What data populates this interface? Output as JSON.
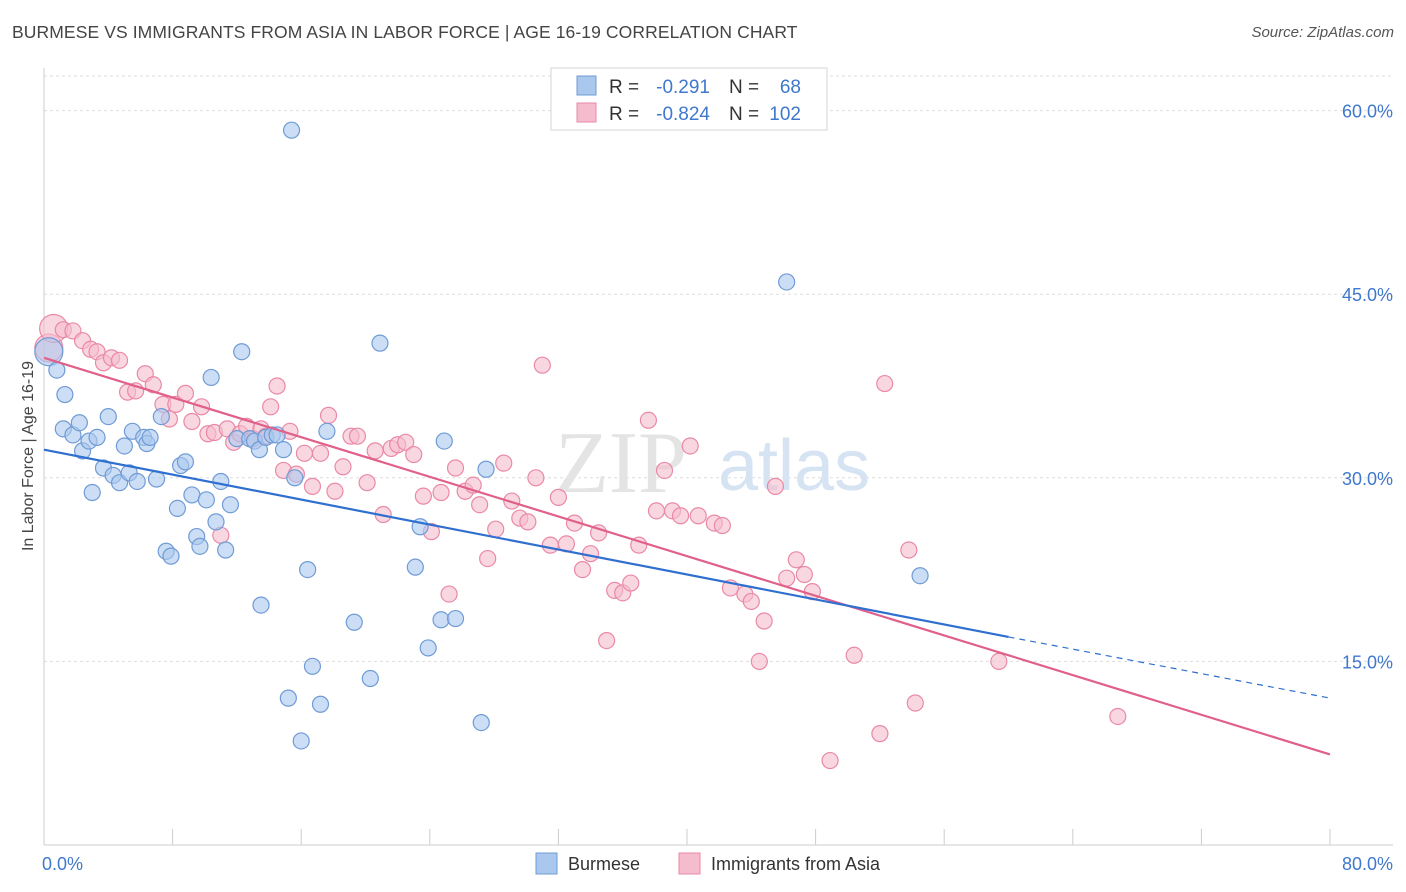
{
  "header": {
    "title": "BURMESE VS IMMIGRANTS FROM ASIA IN LABOR FORCE | AGE 16-19 CORRELATION CHART",
    "source": "Source: ZipAtlas.com"
  },
  "watermark": {
    "part1": "ZIP",
    "part2": "atlas"
  },
  "colors": {
    "blue_fill": "#aac8ee",
    "blue_stroke": "#6f9bd6",
    "blue_line": "#2f6fd0",
    "pink_fill": "#f5bccd",
    "pink_stroke": "#ea89a6",
    "pink_line": "#e0608a",
    "tick_label": "#3f78cc",
    "grid": "#dddddd"
  },
  "stats_box": {
    "rows": [
      {
        "r_label": "R =",
        "r_value": "-0.291",
        "n_label": "N =",
        "n_value": "68"
      },
      {
        "r_label": "R =",
        "r_value": "-0.824",
        "n_label": "N =",
        "n_value": "102"
      }
    ]
  },
  "chart_data": {
    "type": "scatter",
    "title": "BURMESE VS IMMIGRANTS FROM ASIA IN LABOR FORCE | AGE 16-19 CORRELATION CHART",
    "xlabel": "",
    "ylabel": "In Labor Force | Age 16-19",
    "xlim": [
      0,
      80
    ],
    "ylim": [
      0,
      62.5
    ],
    "x_tick_labels": [
      "0.0%",
      "80.0%"
    ],
    "y_ticks": [
      15,
      30,
      45,
      60
    ],
    "y_tick_labels": [
      "15.0%",
      "30.0%",
      "45.0%",
      "60.0%"
    ],
    "grid": true,
    "legend_position": "bottom-center",
    "series": [
      {
        "name": "Burmese",
        "trendline": {
          "x": [
            0,
            60
          ],
          "y": [
            32.3,
            17.0
          ],
          "dashed_extension_x": [
            60,
            80
          ],
          "dashed_extension_y": [
            17.0,
            12.0
          ]
        },
        "points": [
          {
            "x": 0.3,
            "y": 40.3,
            "big": true
          },
          {
            "x": 0.8,
            "y": 38.8
          },
          {
            "x": 1.3,
            "y": 36.8
          },
          {
            "x": 1.2,
            "y": 34.0
          },
          {
            "x": 1.8,
            "y": 33.5
          },
          {
            "x": 2.2,
            "y": 34.5
          },
          {
            "x": 2.4,
            "y": 32.2
          },
          {
            "x": 2.8,
            "y": 33.0
          },
          {
            "x": 3.3,
            "y": 33.3
          },
          {
            "x": 3.0,
            "y": 28.8
          },
          {
            "x": 3.7,
            "y": 30.8
          },
          {
            "x": 4.0,
            "y": 35.0
          },
          {
            "x": 4.3,
            "y": 30.2
          },
          {
            "x": 4.7,
            "y": 29.6
          },
          {
            "x": 5.0,
            "y": 32.6
          },
          {
            "x": 5.3,
            "y": 30.4
          },
          {
            "x": 5.5,
            "y": 33.8
          },
          {
            "x": 5.8,
            "y": 29.7
          },
          {
            "x": 6.2,
            "y": 33.3
          },
          {
            "x": 6.4,
            "y": 32.8
          },
          {
            "x": 6.6,
            "y": 33.3
          },
          {
            "x": 7.0,
            "y": 29.9
          },
          {
            "x": 7.3,
            "y": 35.0
          },
          {
            "x": 7.6,
            "y": 24.0
          },
          {
            "x": 7.9,
            "y": 23.6
          },
          {
            "x": 8.3,
            "y": 27.5
          },
          {
            "x": 8.5,
            "y": 31.0
          },
          {
            "x": 8.8,
            "y": 31.3
          },
          {
            "x": 9.2,
            "y": 28.6
          },
          {
            "x": 9.5,
            "y": 25.2
          },
          {
            "x": 9.7,
            "y": 24.4
          },
          {
            "x": 10.1,
            "y": 28.2
          },
          {
            "x": 10.4,
            "y": 38.2
          },
          {
            "x": 10.7,
            "y": 26.4
          },
          {
            "x": 11.0,
            "y": 29.7
          },
          {
            "x": 11.3,
            "y": 24.1
          },
          {
            "x": 11.6,
            "y": 27.8
          },
          {
            "x": 12.0,
            "y": 33.2
          },
          {
            "x": 12.3,
            "y": 40.3
          },
          {
            "x": 12.8,
            "y": 33.2
          },
          {
            "x": 13.1,
            "y": 33.0
          },
          {
            "x": 13.4,
            "y": 32.3
          },
          {
            "x": 13.5,
            "y": 19.6
          },
          {
            "x": 13.8,
            "y": 33.3
          },
          {
            "x": 14.2,
            "y": 33.5
          },
          {
            "x": 14.5,
            "y": 33.5
          },
          {
            "x": 14.9,
            "y": 32.3
          },
          {
            "x": 15.2,
            "y": 12.0
          },
          {
            "x": 15.4,
            "y": 58.4
          },
          {
            "x": 15.6,
            "y": 30.0
          },
          {
            "x": 16.0,
            "y": 8.5
          },
          {
            "x": 16.4,
            "y": 22.5
          },
          {
            "x": 16.7,
            "y": 14.6
          },
          {
            "x": 17.2,
            "y": 11.5
          },
          {
            "x": 17.6,
            "y": 33.8
          },
          {
            "x": 19.3,
            "y": 18.2
          },
          {
            "x": 20.3,
            "y": 13.6
          },
          {
            "x": 20.9,
            "y": 41.0
          },
          {
            "x": 23.1,
            "y": 22.7
          },
          {
            "x": 23.4,
            "y": 26.0
          },
          {
            "x": 23.9,
            "y": 16.1
          },
          {
            "x": 24.7,
            "y": 18.4
          },
          {
            "x": 24.9,
            "y": 33.0
          },
          {
            "x": 25.6,
            "y": 18.5
          },
          {
            "x": 27.2,
            "y": 10.0
          },
          {
            "x": 27.5,
            "y": 30.7
          },
          {
            "x": 46.2,
            "y": 46.0
          },
          {
            "x": 54.5,
            "y": 22.0
          }
        ]
      },
      {
        "name": "Immigrants from Asia",
        "trendline": {
          "x": [
            0,
            80
          ],
          "y": [
            39.8,
            7.4
          ]
        },
        "points": [
          {
            "x": 0.3,
            "y": 40.6,
            "big": true
          },
          {
            "x": 0.6,
            "y": 42.2,
            "big": true
          },
          {
            "x": 1.2,
            "y": 42.1
          },
          {
            "x": 1.8,
            "y": 42.0
          },
          {
            "x": 2.4,
            "y": 41.2
          },
          {
            "x": 2.9,
            "y": 40.5
          },
          {
            "x": 3.3,
            "y": 40.3
          },
          {
            "x": 3.7,
            "y": 39.4
          },
          {
            "x": 4.2,
            "y": 39.8
          },
          {
            "x": 4.7,
            "y": 39.6
          },
          {
            "x": 5.2,
            "y": 37.0
          },
          {
            "x": 5.7,
            "y": 37.1
          },
          {
            "x": 6.3,
            "y": 38.5
          },
          {
            "x": 6.8,
            "y": 37.6
          },
          {
            "x": 7.4,
            "y": 36.0
          },
          {
            "x": 7.8,
            "y": 34.8
          },
          {
            "x": 8.2,
            "y": 36.0
          },
          {
            "x": 8.8,
            "y": 36.9
          },
          {
            "x": 9.2,
            "y": 34.6
          },
          {
            "x": 9.8,
            "y": 35.8
          },
          {
            "x": 10.2,
            "y": 33.6
          },
          {
            "x": 10.6,
            "y": 33.7
          },
          {
            "x": 11.0,
            "y": 25.3
          },
          {
            "x": 11.4,
            "y": 34.0
          },
          {
            "x": 11.8,
            "y": 32.9
          },
          {
            "x": 12.2,
            "y": 33.6
          },
          {
            "x": 12.6,
            "y": 34.2
          },
          {
            "x": 13.0,
            "y": 33.2
          },
          {
            "x": 13.5,
            "y": 34.0
          },
          {
            "x": 13.8,
            "y": 33.4
          },
          {
            "x": 14.1,
            "y": 35.8
          },
          {
            "x": 14.5,
            "y": 37.5
          },
          {
            "x": 14.9,
            "y": 30.6
          },
          {
            "x": 15.3,
            "y": 33.8
          },
          {
            "x": 15.7,
            "y": 30.3
          },
          {
            "x": 16.2,
            "y": 32.0
          },
          {
            "x": 16.7,
            "y": 29.3
          },
          {
            "x": 17.2,
            "y": 32.0
          },
          {
            "x": 17.7,
            "y": 35.1
          },
          {
            "x": 18.1,
            "y": 28.9
          },
          {
            "x": 18.6,
            "y": 30.9
          },
          {
            "x": 19.1,
            "y": 33.4
          },
          {
            "x": 19.5,
            "y": 33.4
          },
          {
            "x": 20.1,
            "y": 29.6
          },
          {
            "x": 20.6,
            "y": 32.2
          },
          {
            "x": 21.1,
            "y": 27.0
          },
          {
            "x": 21.6,
            "y": 32.4
          },
          {
            "x": 22.0,
            "y": 32.7
          },
          {
            "x": 22.5,
            "y": 32.9
          },
          {
            "x": 23.0,
            "y": 31.9
          },
          {
            "x": 23.6,
            "y": 28.5
          },
          {
            "x": 24.1,
            "y": 25.6
          },
          {
            "x": 24.7,
            "y": 28.8
          },
          {
            "x": 25.2,
            "y": 20.5
          },
          {
            "x": 25.6,
            "y": 30.8
          },
          {
            "x": 26.2,
            "y": 28.9
          },
          {
            "x": 26.7,
            "y": 29.4
          },
          {
            "x": 27.1,
            "y": 27.8
          },
          {
            "x": 27.6,
            "y": 23.4
          },
          {
            "x": 28.1,
            "y": 25.8
          },
          {
            "x": 28.6,
            "y": 31.2
          },
          {
            "x": 29.1,
            "y": 28.1
          },
          {
            "x": 29.6,
            "y": 26.7
          },
          {
            "x": 30.1,
            "y": 26.4
          },
          {
            "x": 30.6,
            "y": 30.0
          },
          {
            "x": 31.0,
            "y": 39.2
          },
          {
            "x": 31.5,
            "y": 24.5
          },
          {
            "x": 32.0,
            "y": 28.4
          },
          {
            "x": 32.5,
            "y": 24.6
          },
          {
            "x": 33.0,
            "y": 26.3
          },
          {
            "x": 33.5,
            "y": 22.5
          },
          {
            "x": 34.0,
            "y": 23.8
          },
          {
            "x": 34.5,
            "y": 25.5
          },
          {
            "x": 35.0,
            "y": 16.7
          },
          {
            "x": 35.5,
            "y": 20.8
          },
          {
            "x": 36.0,
            "y": 20.6
          },
          {
            "x": 36.5,
            "y": 21.4
          },
          {
            "x": 37.0,
            "y": 24.5
          },
          {
            "x": 37.6,
            "y": 34.7
          },
          {
            "x": 38.1,
            "y": 27.3
          },
          {
            "x": 38.6,
            "y": 30.6
          },
          {
            "x": 39.1,
            "y": 27.3
          },
          {
            "x": 39.6,
            "y": 26.9
          },
          {
            "x": 40.2,
            "y": 32.6
          },
          {
            "x": 40.7,
            "y": 26.9
          },
          {
            "x": 41.7,
            "y": 26.3
          },
          {
            "x": 42.2,
            "y": 26.1
          },
          {
            "x": 42.7,
            "y": 21.0
          },
          {
            "x": 43.6,
            "y": 20.5
          },
          {
            "x": 44.0,
            "y": 19.9
          },
          {
            "x": 44.5,
            "y": 15.0
          },
          {
            "x": 44.8,
            "y": 18.3
          },
          {
            "x": 45.5,
            "y": 29.3
          },
          {
            "x": 46.2,
            "y": 21.8
          },
          {
            "x": 46.8,
            "y": 23.3
          },
          {
            "x": 47.3,
            "y": 22.1
          },
          {
            "x": 47.8,
            "y": 20.7
          },
          {
            "x": 48.9,
            "y": 6.9
          },
          {
            "x": 50.4,
            "y": 15.5
          },
          {
            "x": 52.0,
            "y": 9.1
          },
          {
            "x": 52.3,
            "y": 37.7
          },
          {
            "x": 53.8,
            "y": 24.1
          },
          {
            "x": 54.2,
            "y": 11.6
          },
          {
            "x": 59.4,
            "y": 15.0
          },
          {
            "x": 66.8,
            "y": 10.5
          }
        ]
      }
    ]
  }
}
